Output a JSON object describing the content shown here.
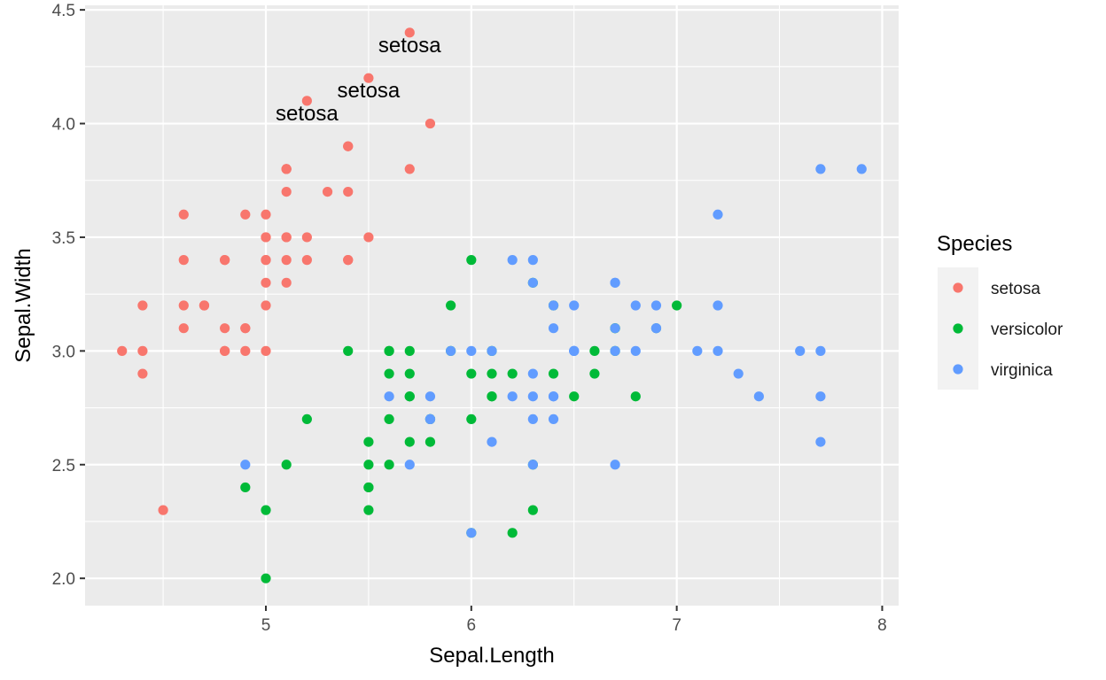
{
  "chart_data": {
    "type": "scatter",
    "xlabel": "Sepal.Length",
    "ylabel": "Sepal.Width",
    "xlim": [
      4.12,
      8.08
    ],
    "ylim": [
      1.88,
      4.52
    ],
    "x_ticks": [
      5,
      6,
      7,
      8
    ],
    "x_tick_labels": [
      "5",
      "6",
      "7",
      "8"
    ],
    "y_ticks": [
      2.0,
      2.5,
      3.0,
      3.5,
      4.0,
      4.5
    ],
    "y_tick_labels": [
      "2.0",
      "2.5",
      "3.0",
      "3.5",
      "4.0",
      "4.5"
    ],
    "grid": true,
    "legend": {
      "title": "Species",
      "position": "right",
      "entries": [
        {
          "label": "setosa",
          "color": "#F8766D"
        },
        {
          "label": "versicolor",
          "color": "#00BA38"
        },
        {
          "label": "virginica",
          "color": "#619CFF"
        }
      ]
    },
    "series": [
      {
        "name": "setosa",
        "color": "#F8766D",
        "points": [
          [
            5.1,
            3.5
          ],
          [
            4.9,
            3.0
          ],
          [
            4.7,
            3.2
          ],
          [
            4.6,
            3.1
          ],
          [
            5.0,
            3.6
          ],
          [
            5.4,
            3.9
          ],
          [
            4.6,
            3.4
          ],
          [
            5.0,
            3.4
          ],
          [
            4.4,
            2.9
          ],
          [
            4.9,
            3.1
          ],
          [
            5.4,
            3.7
          ],
          [
            4.8,
            3.4
          ],
          [
            4.8,
            3.0
          ],
          [
            4.3,
            3.0
          ],
          [
            5.8,
            4.0
          ],
          [
            5.7,
            4.4
          ],
          [
            5.4,
            3.9
          ],
          [
            5.1,
            3.5
          ],
          [
            5.7,
            3.8
          ],
          [
            5.1,
            3.8
          ],
          [
            5.4,
            3.4
          ],
          [
            5.1,
            3.7
          ],
          [
            4.6,
            3.6
          ],
          [
            5.1,
            3.3
          ],
          [
            4.8,
            3.4
          ],
          [
            5.0,
            3.0
          ],
          [
            5.0,
            3.4
          ],
          [
            5.2,
            3.5
          ],
          [
            5.2,
            3.4
          ],
          [
            4.7,
            3.2
          ],
          [
            4.8,
            3.1
          ],
          [
            5.4,
            3.4
          ],
          [
            5.2,
            4.1
          ],
          [
            5.5,
            4.2
          ],
          [
            4.9,
            3.1
          ],
          [
            5.0,
            3.2
          ],
          [
            5.5,
            3.5
          ],
          [
            4.9,
            3.6
          ],
          [
            4.4,
            3.0
          ],
          [
            5.1,
            3.4
          ],
          [
            5.0,
            3.5
          ],
          [
            4.5,
            2.3
          ],
          [
            4.4,
            3.2
          ],
          [
            5.0,
            3.5
          ],
          [
            5.1,
            3.8
          ],
          [
            4.8,
            3.0
          ],
          [
            5.1,
            3.8
          ],
          [
            4.6,
            3.2
          ],
          [
            5.3,
            3.7
          ],
          [
            5.0,
            3.3
          ]
        ]
      },
      {
        "name": "versicolor",
        "color": "#00BA38",
        "points": [
          [
            7.0,
            3.2
          ],
          [
            6.4,
            3.2
          ],
          [
            6.9,
            3.1
          ],
          [
            5.5,
            2.3
          ],
          [
            6.5,
            2.8
          ],
          [
            5.7,
            2.8
          ],
          [
            6.3,
            3.3
          ],
          [
            4.9,
            2.4
          ],
          [
            6.6,
            2.9
          ],
          [
            5.2,
            2.7
          ],
          [
            5.0,
            2.0
          ],
          [
            5.9,
            3.0
          ],
          [
            6.0,
            2.2
          ],
          [
            6.1,
            2.9
          ],
          [
            5.6,
            2.9
          ],
          [
            6.7,
            3.1
          ],
          [
            5.6,
            3.0
          ],
          [
            5.8,
            2.7
          ],
          [
            6.2,
            2.2
          ],
          [
            5.6,
            2.5
          ],
          [
            5.9,
            3.2
          ],
          [
            6.1,
            2.8
          ],
          [
            6.3,
            2.5
          ],
          [
            6.1,
            2.8
          ],
          [
            6.4,
            2.9
          ],
          [
            6.6,
            3.0
          ],
          [
            6.8,
            2.8
          ],
          [
            6.7,
            3.0
          ],
          [
            6.0,
            2.9
          ],
          [
            5.7,
            2.6
          ],
          [
            5.5,
            2.4
          ],
          [
            5.5,
            2.4
          ],
          [
            5.8,
            2.7
          ],
          [
            6.0,
            2.7
          ],
          [
            5.4,
            3.0
          ],
          [
            6.0,
            3.4
          ],
          [
            6.7,
            3.1
          ],
          [
            6.3,
            2.3
          ],
          [
            5.6,
            3.0
          ],
          [
            5.5,
            2.5
          ],
          [
            5.5,
            2.6
          ],
          [
            6.1,
            3.0
          ],
          [
            5.8,
            2.6
          ],
          [
            5.0,
            2.3
          ],
          [
            5.6,
            2.7
          ],
          [
            5.7,
            3.0
          ],
          [
            5.7,
            2.9
          ],
          [
            6.2,
            2.9
          ],
          [
            5.1,
            2.5
          ],
          [
            5.7,
            2.8
          ]
        ]
      },
      {
        "name": "virginica",
        "color": "#619CFF",
        "points": [
          [
            6.3,
            3.3
          ],
          [
            5.8,
            2.7
          ],
          [
            7.1,
            3.0
          ],
          [
            6.3,
            2.9
          ],
          [
            6.5,
            3.0
          ],
          [
            7.6,
            3.0
          ],
          [
            4.9,
            2.5
          ],
          [
            7.3,
            2.9
          ],
          [
            6.7,
            2.5
          ],
          [
            7.2,
            3.6
          ],
          [
            6.5,
            3.2
          ],
          [
            6.4,
            2.7
          ],
          [
            6.8,
            3.0
          ],
          [
            5.7,
            2.5
          ],
          [
            5.8,
            2.8
          ],
          [
            6.4,
            3.2
          ],
          [
            6.5,
            3.0
          ],
          [
            7.7,
            3.8
          ],
          [
            7.7,
            2.6
          ],
          [
            6.0,
            2.2
          ],
          [
            6.9,
            3.2
          ],
          [
            5.6,
            2.8
          ],
          [
            7.7,
            2.8
          ],
          [
            6.3,
            2.7
          ],
          [
            6.7,
            3.3
          ],
          [
            7.2,
            3.2
          ],
          [
            6.2,
            2.8
          ],
          [
            6.1,
            3.0
          ],
          [
            6.4,
            2.8
          ],
          [
            7.2,
            3.0
          ],
          [
            7.4,
            2.8
          ],
          [
            7.9,
            3.8
          ],
          [
            6.4,
            2.8
          ],
          [
            6.3,
            2.8
          ],
          [
            6.1,
            2.6
          ],
          [
            7.7,
            3.0
          ],
          [
            6.3,
            3.4
          ],
          [
            6.4,
            3.1
          ],
          [
            6.0,
            3.0
          ],
          [
            6.9,
            3.1
          ],
          [
            6.7,
            3.1
          ],
          [
            6.9,
            3.1
          ],
          [
            5.8,
            2.7
          ],
          [
            6.8,
            3.2
          ],
          [
            6.7,
            3.3
          ],
          [
            6.7,
            3.0
          ],
          [
            6.3,
            2.5
          ],
          [
            6.5,
            3.0
          ],
          [
            6.2,
            3.4
          ],
          [
            5.9,
            3.0
          ]
        ]
      }
    ],
    "annotations": [
      {
        "text": "setosa",
        "x": 5.7,
        "y": 4.4
      },
      {
        "text": "setosa",
        "x": 5.5,
        "y": 4.2
      },
      {
        "text": "setosa",
        "x": 5.2,
        "y": 4.1
      }
    ]
  }
}
